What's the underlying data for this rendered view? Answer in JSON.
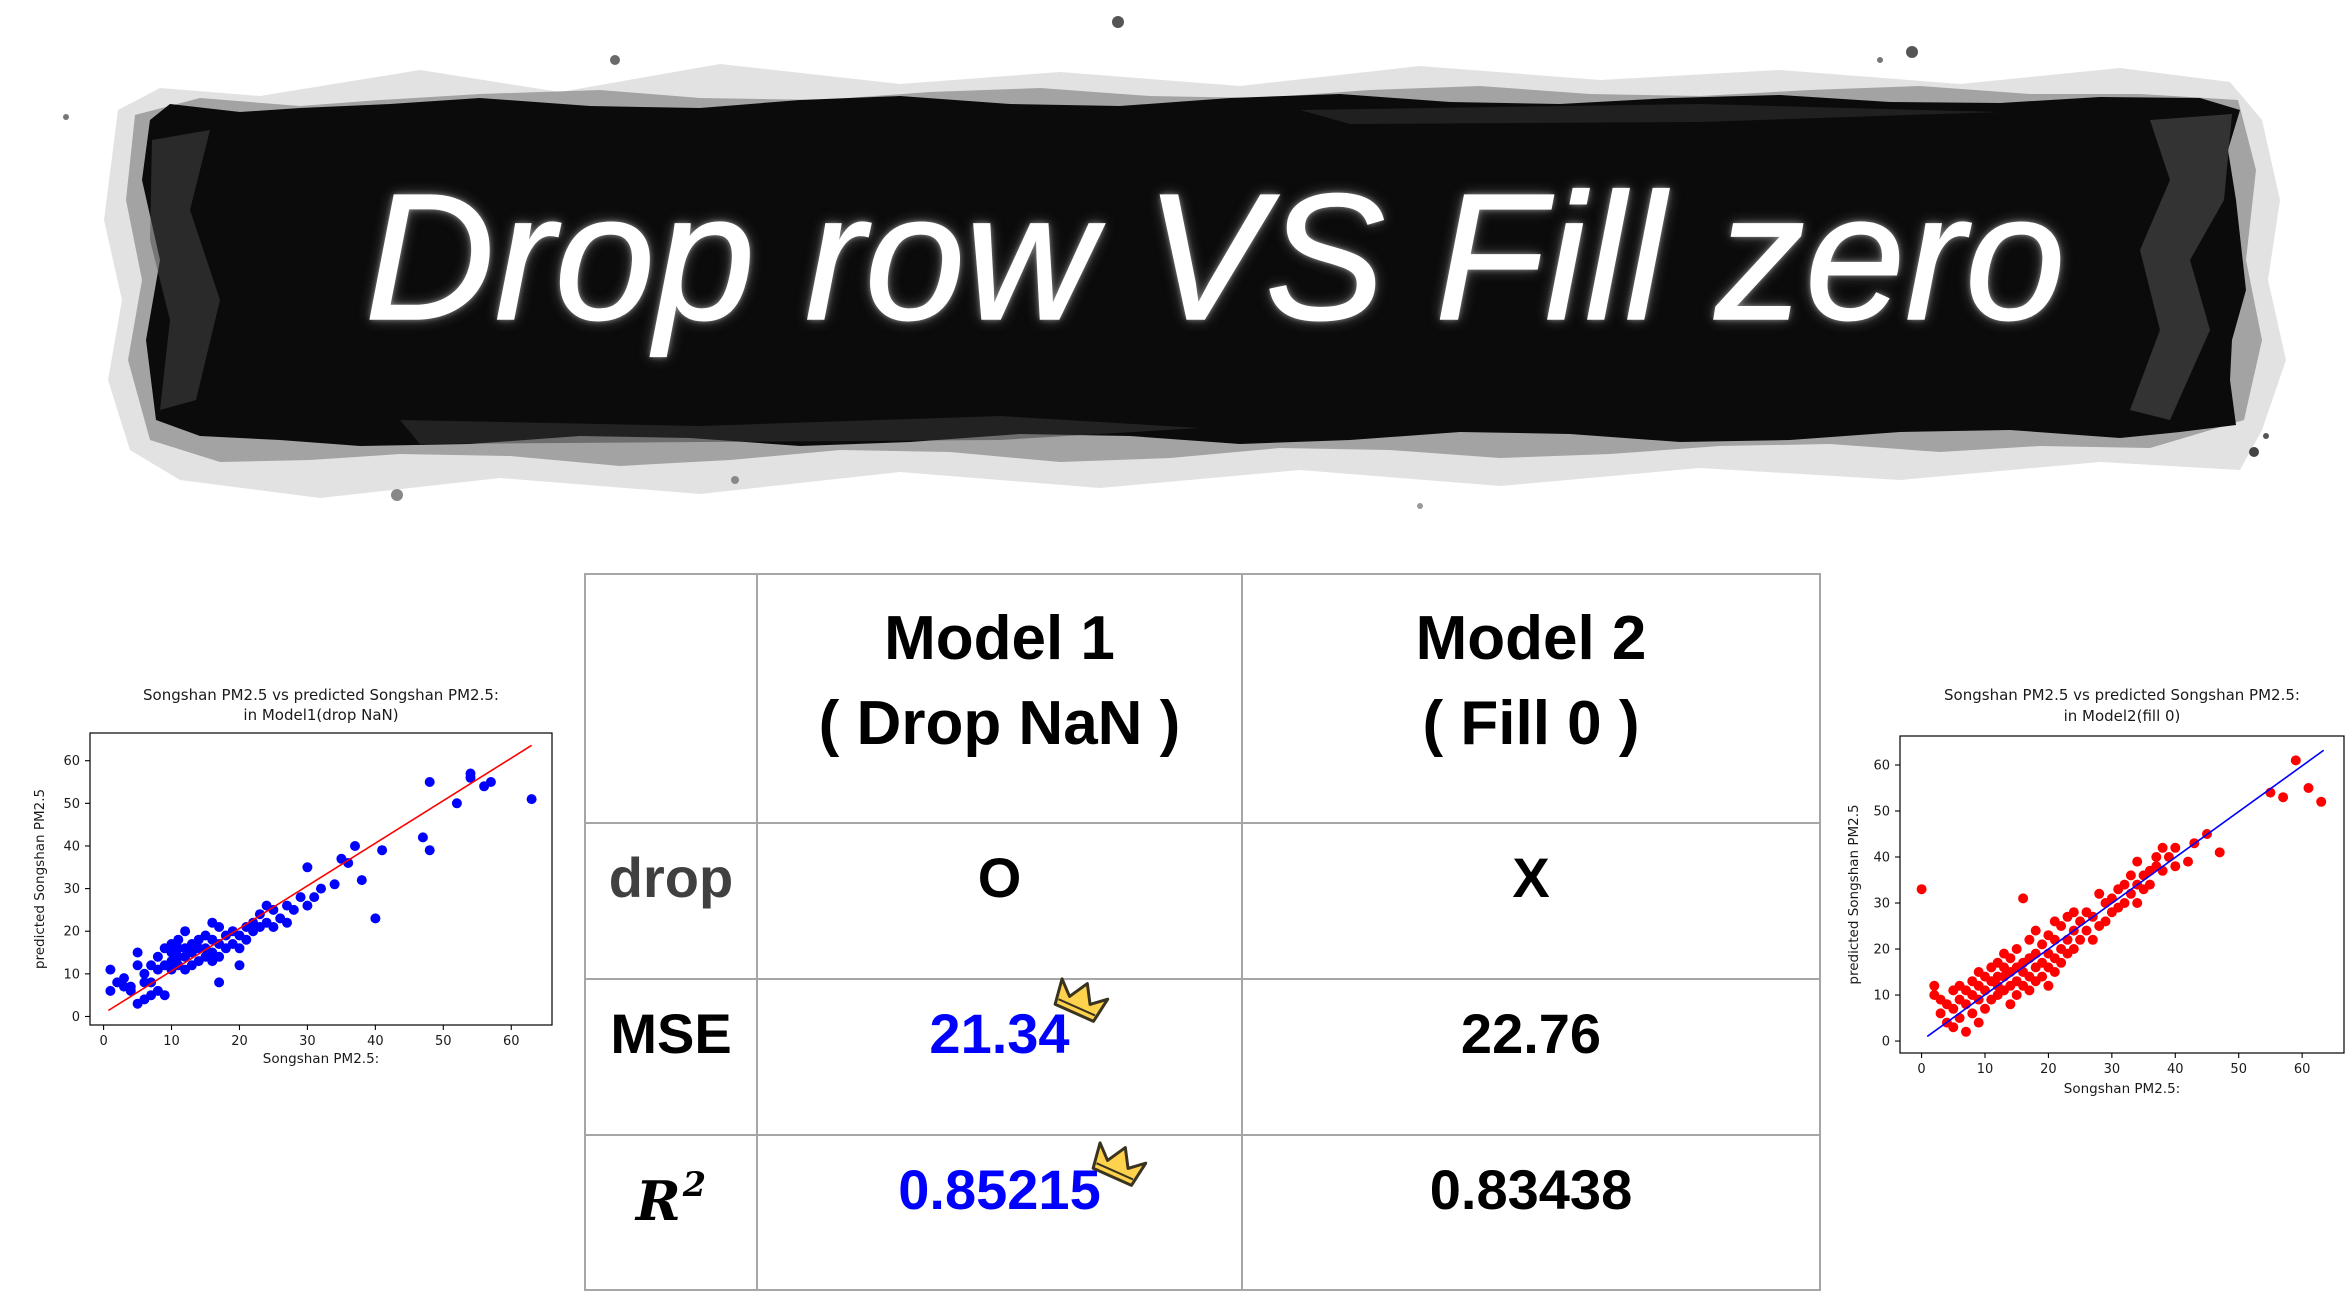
{
  "slide": {
    "title": "Drop row VS Fill zero"
  },
  "banner": {
    "ink_color": "#0b0b0b",
    "title_color": "#ffffff"
  },
  "table": {
    "header": {
      "model1": {
        "line1": "Model 1",
        "line2": "( Drop NaN )"
      },
      "model2": {
        "line1": "Model 2",
        "line2": "( Fill 0 )"
      }
    },
    "rows": [
      {
        "label": "drop",
        "model1": "O",
        "model2": "X"
      },
      {
        "label": "MSE",
        "model1": "21.34",
        "model2": "22.76",
        "model1_icon": "crown-icon"
      },
      {
        "label_base": "R",
        "label_sup": "2",
        "model1": "0.85215",
        "model2": "0.83438",
        "model1_icon": "crown-icon"
      }
    ],
    "colors": {
      "best_value": "#0000ff",
      "drop_label": "#404040",
      "text": "#000000",
      "border": "#a6a6a6",
      "crown_fill": "#ffd24d"
    }
  },
  "chart_data": [
    {
      "type": "scatter",
      "title_lines": [
        "Songshan PM2.5 vs predicted Songshan PM2.5:",
        "in Model1(drop NaN)"
      ],
      "xlabel": "Songshan PM2.5:",
      "ylabel": "predicted Songshan PM2.5",
      "xlim": [
        -2,
        66
      ],
      "ylim": [
        -2,
        66.5
      ],
      "xticks": [
        0,
        10,
        20,
        30,
        40,
        50,
        60
      ],
      "yticks": [
        0,
        10,
        20,
        30,
        40,
        50,
        60
      ],
      "grid": false,
      "series": [
        {
          "type": "scatter",
          "color": "#0000ff",
          "points": [
            [
              1,
              11
            ],
            [
              1,
              6
            ],
            [
              2,
              8
            ],
            [
              3,
              7
            ],
            [
              3,
              9
            ],
            [
              4,
              7
            ],
            [
              4,
              6
            ],
            [
              5,
              3
            ],
            [
              5,
              12
            ],
            [
              5,
              15
            ],
            [
              6,
              4
            ],
            [
              6,
              8
            ],
            [
              6,
              10
            ],
            [
              7,
              5
            ],
            [
              7,
              12
            ],
            [
              7,
              8
            ],
            [
              8,
              6
            ],
            [
              8,
              11
            ],
            [
              8,
              14
            ],
            [
              9,
              5
            ],
            [
              9,
              12
            ],
            [
              9,
              16
            ],
            [
              10,
              11
            ],
            [
              10,
              13
            ],
            [
              10,
              15
            ],
            [
              10,
              17
            ],
            [
              11,
              12
            ],
            [
              11,
              14
            ],
            [
              11,
              16
            ],
            [
              11,
              18
            ],
            [
              12,
              11
            ],
            [
              12,
              14
            ],
            [
              12,
              16
            ],
            [
              12,
              20
            ],
            [
              13,
              12
            ],
            [
              13,
              15
            ],
            [
              13,
              17
            ],
            [
              14,
              13
            ],
            [
              14,
              16
            ],
            [
              14,
              18
            ],
            [
              15,
              14
            ],
            [
              15,
              16
            ],
            [
              15,
              19
            ],
            [
              16,
              13
            ],
            [
              16,
              15
            ],
            [
              16,
              18
            ],
            [
              16,
              22
            ],
            [
              17,
              8
            ],
            [
              17,
              14
            ],
            [
              17,
              17
            ],
            [
              17,
              21
            ],
            [
              18,
              16
            ],
            [
              18,
              19
            ],
            [
              19,
              17
            ],
            [
              19,
              20
            ],
            [
              20,
              12
            ],
            [
              20,
              16
            ],
            [
              20,
              19
            ],
            [
              21,
              18
            ],
            [
              21,
              21
            ],
            [
              22,
              20
            ],
            [
              22,
              22
            ],
            [
              23,
              21
            ],
            [
              23,
              24
            ],
            [
              24,
              22
            ],
            [
              24,
              26
            ],
            [
              25,
              21
            ],
            [
              25,
              25
            ],
            [
              26,
              23
            ],
            [
              27,
              22
            ],
            [
              27,
              26
            ],
            [
              28,
              25
            ],
            [
              29,
              28
            ],
            [
              30,
              35
            ],
            [
              30,
              26
            ],
            [
              31,
              28
            ],
            [
              32,
              30
            ],
            [
              34,
              31
            ],
            [
              35,
              37
            ],
            [
              36,
              36
            ],
            [
              37,
              40
            ],
            [
              38,
              32
            ],
            [
              40,
              23
            ],
            [
              41,
              39
            ],
            [
              47,
              42
            ],
            [
              48,
              39
            ],
            [
              48,
              55
            ],
            [
              52,
              50
            ],
            [
              54,
              57
            ],
            [
              54,
              56
            ],
            [
              56,
              54
            ],
            [
              57,
              55
            ],
            [
              63,
              51
            ]
          ]
        },
        {
          "type": "line",
          "color": "#ff0000",
          "x": [
            0.7,
            63
          ],
          "y": [
            1.4,
            63.6
          ]
        }
      ]
    },
    {
      "type": "scatter",
      "title_lines": [
        "Songshan PM2.5 vs predicted Songshan PM2.5:",
        "in Model2(fill 0)"
      ],
      "xlabel": "Songshan PM2.5:",
      "ylabel": "predicted Songshan PM2.5",
      "xlim": [
        -3.4,
        66.6
      ],
      "ylim": [
        -2.6,
        66.3
      ],
      "xticks": [
        0,
        10,
        20,
        30,
        40,
        50,
        60
      ],
      "yticks": [
        0,
        10,
        20,
        30,
        40,
        50,
        60
      ],
      "grid": false,
      "series": [
        {
          "type": "scatter",
          "color": "#ff0000",
          "points": [
            [
              0,
              33
            ],
            [
              2,
              10
            ],
            [
              2,
              12
            ],
            [
              3,
              6
            ],
            [
              3,
              9
            ],
            [
              4,
              4
            ],
            [
              4,
              8
            ],
            [
              5,
              3
            ],
            [
              5,
              7
            ],
            [
              5,
              11
            ],
            [
              6,
              5
            ],
            [
              6,
              9
            ],
            [
              6,
              12
            ],
            [
              7,
              2
            ],
            [
              7,
              8
            ],
            [
              7,
              11
            ],
            [
              8,
              6
            ],
            [
              8,
              10
            ],
            [
              8,
              13
            ],
            [
              9,
              4
            ],
            [
              9,
              9
            ],
            [
              9,
              12
            ],
            [
              9,
              15
            ],
            [
              10,
              7
            ],
            [
              10,
              11
            ],
            [
              10,
              14
            ],
            [
              11,
              9
            ],
            [
              11,
              13
            ],
            [
              11,
              16
            ],
            [
              12,
              10
            ],
            [
              12,
              12
            ],
            [
              12,
              14
            ],
            [
              12,
              17
            ],
            [
              13,
              11
            ],
            [
              13,
              14
            ],
            [
              13,
              16
            ],
            [
              13,
              19
            ],
            [
              14,
              8
            ],
            [
              14,
              12
            ],
            [
              14,
              15
            ],
            [
              14,
              18
            ],
            [
              15,
              10
            ],
            [
              15,
              13
            ],
            [
              15,
              16
            ],
            [
              15,
              20
            ],
            [
              16,
              12
            ],
            [
              16,
              15
            ],
            [
              16,
              17
            ],
            [
              16,
              31
            ],
            [
              17,
              11
            ],
            [
              17,
              14
            ],
            [
              17,
              18
            ],
            [
              17,
              22
            ],
            [
              18,
              13
            ],
            [
              18,
              16
            ],
            [
              18,
              19
            ],
            [
              18,
              24
            ],
            [
              19,
              14
            ],
            [
              19,
              17
            ],
            [
              19,
              21
            ],
            [
              20,
              12
            ],
            [
              20,
              16
            ],
            [
              20,
              19
            ],
            [
              20,
              23
            ],
            [
              21,
              15
            ],
            [
              21,
              18
            ],
            [
              21,
              22
            ],
            [
              21,
              26
            ],
            [
              22,
              17
            ],
            [
              22,
              20
            ],
            [
              22,
              25
            ],
            [
              23,
              19
            ],
            [
              23,
              22
            ],
            [
              23,
              27
            ],
            [
              24,
              20
            ],
            [
              24,
              24
            ],
            [
              24,
              28
            ],
            [
              25,
              22
            ],
            [
              25,
              26
            ],
            [
              26,
              24
            ],
            [
              26,
              28
            ],
            [
              27,
              22
            ],
            [
              27,
              27
            ],
            [
              28,
              25
            ],
            [
              28,
              32
            ],
            [
              29,
              26
            ],
            [
              29,
              30
            ],
            [
              30,
              28
            ],
            [
              30,
              31
            ],
            [
              31,
              29
            ],
            [
              31,
              33
            ],
            [
              32,
              30
            ],
            [
              32,
              34
            ],
            [
              33,
              32
            ],
            [
              33,
              36
            ],
            [
              34,
              30
            ],
            [
              34,
              34
            ],
            [
              34,
              39
            ],
            [
              35,
              33
            ],
            [
              35,
              36
            ],
            [
              36,
              34
            ],
            [
              36,
              37
            ],
            [
              37,
              38
            ],
            [
              37,
              40
            ],
            [
              38,
              37
            ],
            [
              38,
              42
            ],
            [
              39,
              40
            ],
            [
              40,
              38
            ],
            [
              40,
              42
            ],
            [
              42,
              39
            ],
            [
              43,
              43
            ],
            [
              45,
              45
            ],
            [
              47,
              41
            ],
            [
              55,
              54
            ],
            [
              57,
              53
            ],
            [
              59,
              61
            ],
            [
              61,
              55
            ],
            [
              63,
              52
            ]
          ]
        },
        {
          "type": "line",
          "color": "#0000ff",
          "x": [
            0.9,
            63.4
          ],
          "y": [
            1.0,
            63.2
          ]
        }
      ]
    }
  ]
}
